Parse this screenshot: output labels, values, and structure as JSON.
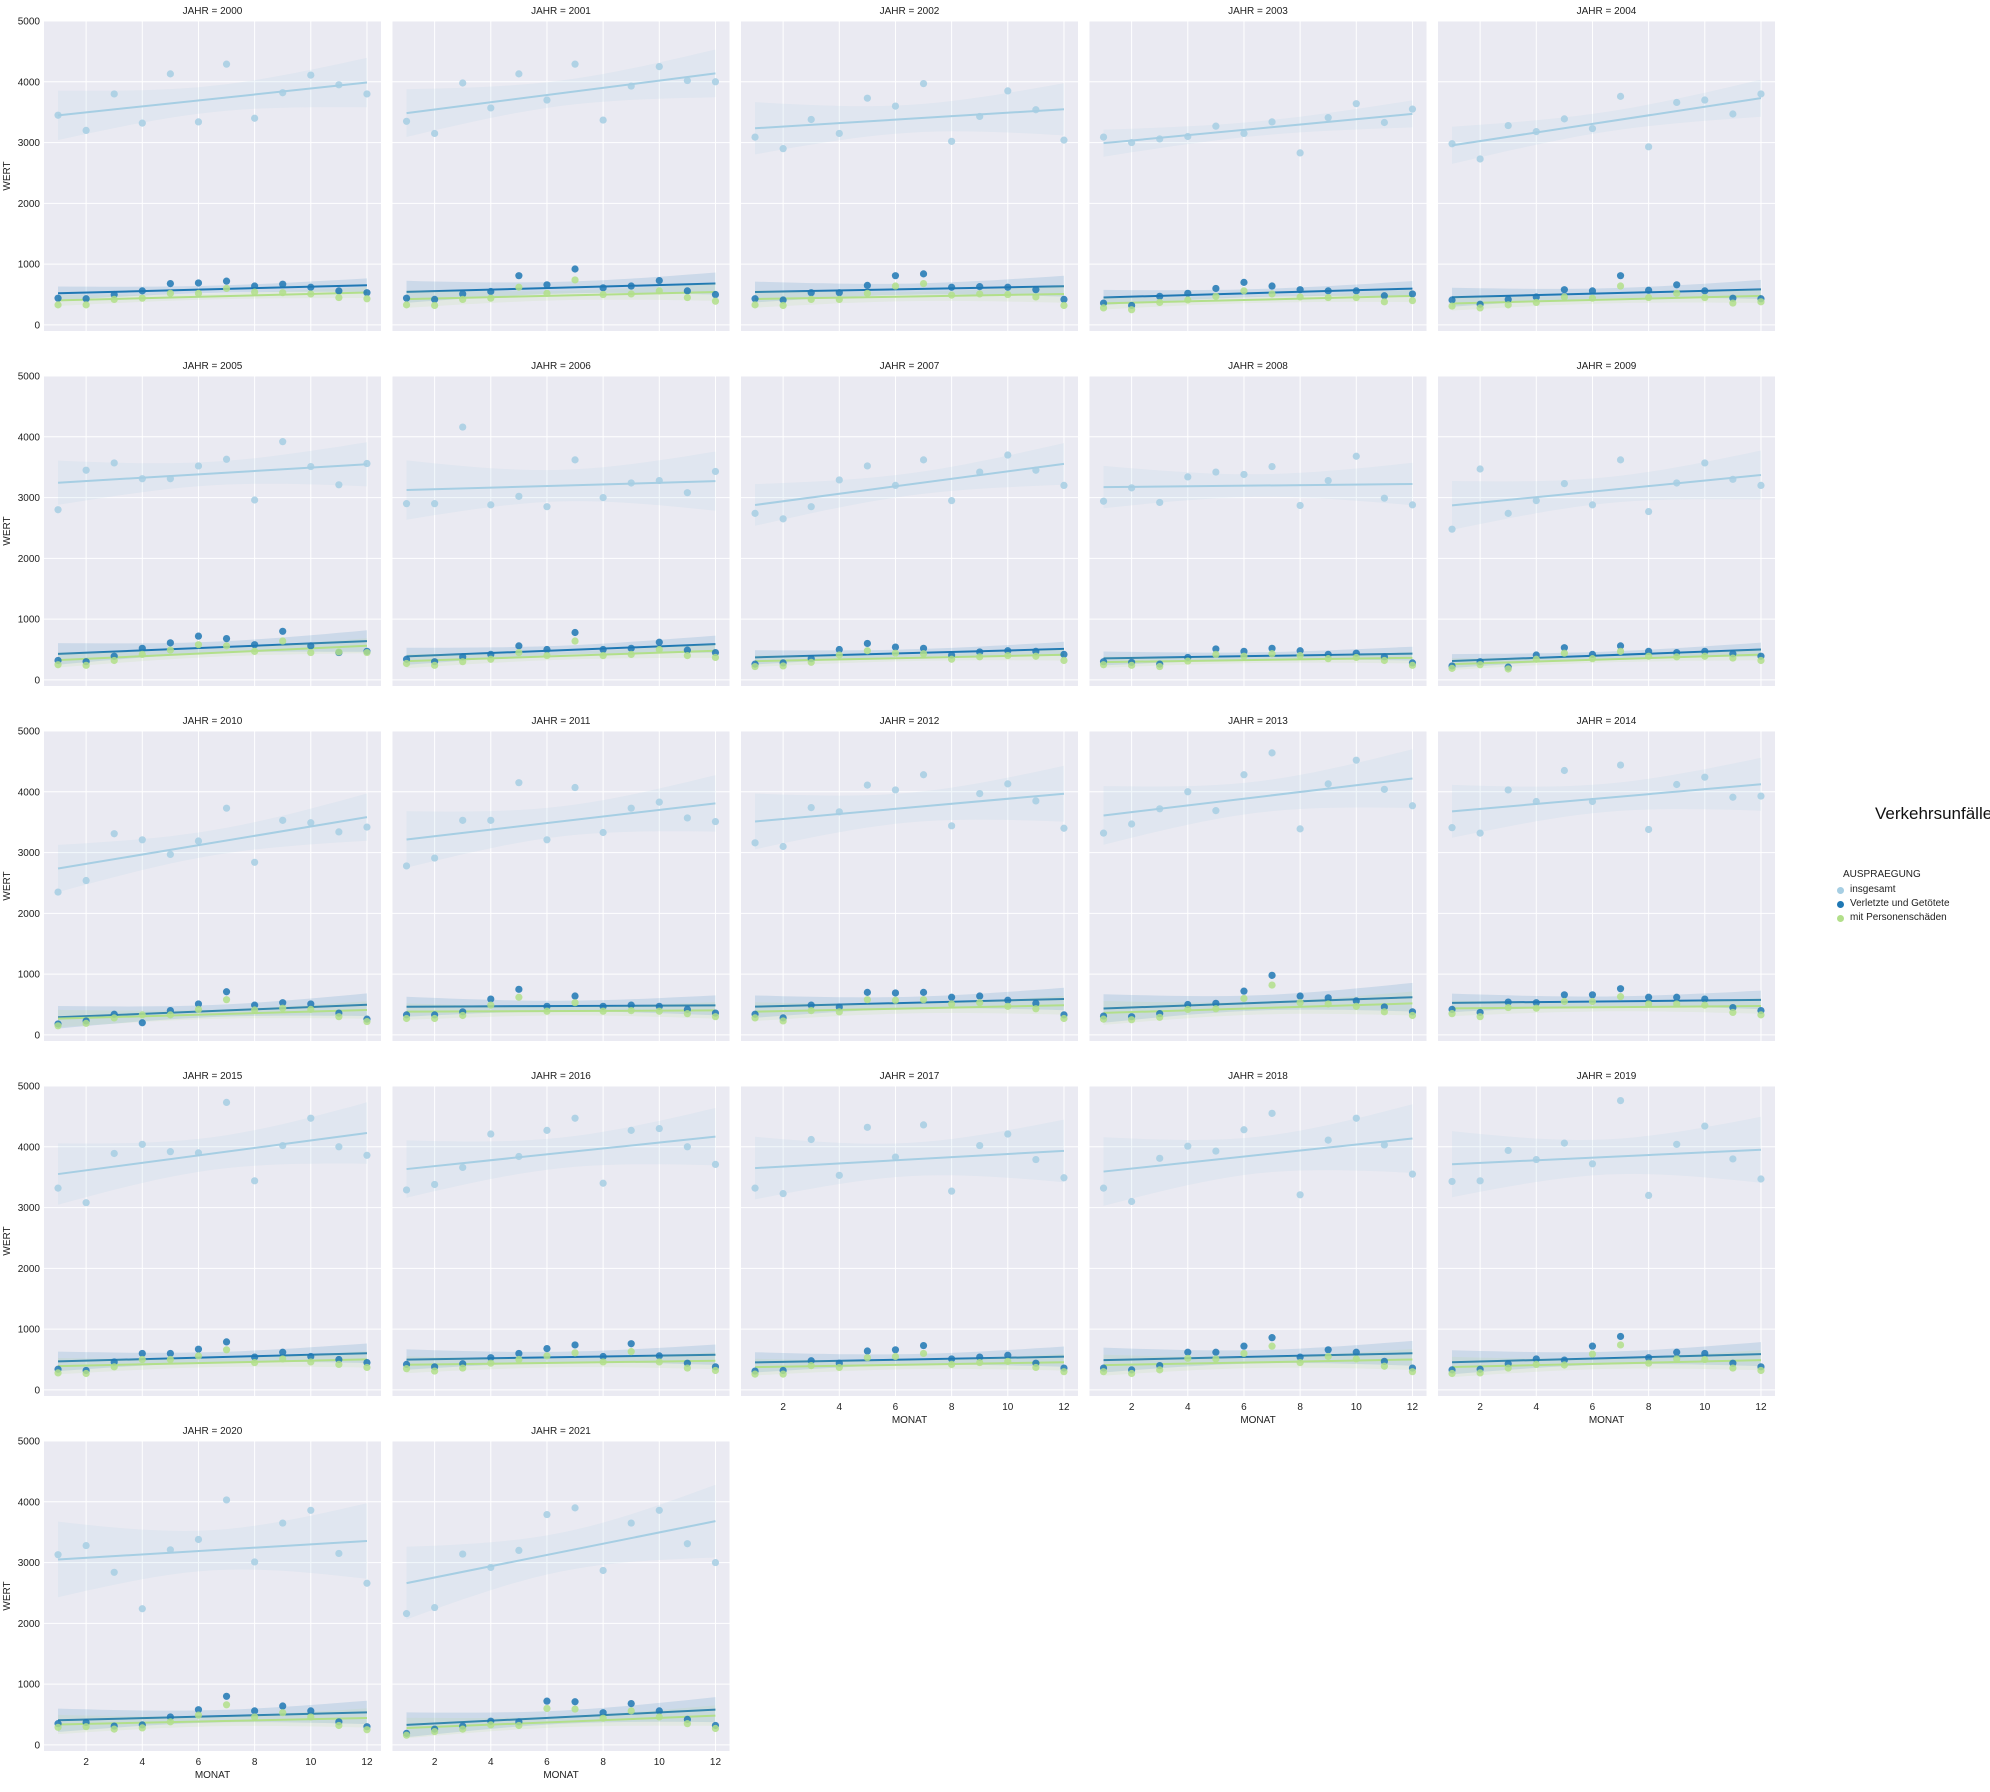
{
  "chart_data": {
    "type": "scatter",
    "facet_variable": "JAHR",
    "facet_title_prefix": "JAHR = ",
    "xlabel": "MONAT",
    "ylabel": "WERT",
    "xticks": [
      2,
      4,
      6,
      8,
      10,
      12
    ],
    "yticks": [
      0,
      1000,
      2000,
      3000,
      4000,
      5000
    ],
    "xlim": [
      0.5,
      12.5
    ],
    "ylim": [
      -100,
      5000
    ],
    "grid": true,
    "regression_lines": true,
    "legend_title": "Verkehrsunfälle",
    "legend_subtitle": "AUSPRAEGUNG",
    "legend_position": "right",
    "series_meta": [
      {
        "name": "insgesamt",
        "color": "#a6cee3"
      },
      {
        "name": "Verletzte und Getötete",
        "color": "#1f78b4"
      },
      {
        "name": "mit Personenschäden",
        "color": "#b2df8a"
      }
    ],
    "months": [
      1,
      2,
      3,
      4,
      5,
      6,
      7,
      8,
      9,
      10,
      11,
      12
    ],
    "panels": [
      {
        "year": "2000",
        "insgesamt": [
          3450,
          3200,
          3800,
          3320,
          4130,
          3340,
          4290,
          3400,
          3820,
          4110,
          3950,
          3800
        ],
        "verletzte": [
          440,
          430,
          500,
          560,
          680,
          690,
          720,
          640,
          670,
          620,
          560,
          530
        ],
        "personen": [
          330,
          330,
          420,
          440,
          520,
          520,
          600,
          540,
          530,
          510,
          450,
          430
        ]
      },
      {
        "year": "2001",
        "insgesamt": [
          3350,
          3150,
          3980,
          3570,
          4130,
          3700,
          4290,
          3370,
          3930,
          4250,
          4020,
          4000
        ],
        "verletzte": [
          440,
          420,
          510,
          550,
          810,
          660,
          920,
          610,
          640,
          730,
          560,
          500
        ],
        "personen": [
          330,
          320,
          420,
          440,
          620,
          520,
          740,
          500,
          510,
          560,
          450,
          390
        ]
      },
      {
        "year": "2002",
        "insgesamt": [
          3090,
          2900,
          3380,
          3150,
          3730,
          3600,
          3970,
          3020,
          3430,
          3850,
          3540,
          3040
        ],
        "verletzte": [
          430,
          410,
          530,
          530,
          650,
          810,
          840,
          620,
          630,
          620,
          580,
          420
        ],
        "personen": [
          330,
          320,
          420,
          420,
          520,
          640,
          680,
          490,
          510,
          500,
          460,
          320
        ]
      },
      {
        "year": "2003",
        "insgesamt": [
          3090,
          3000,
          3060,
          3100,
          3270,
          3150,
          3340,
          2830,
          3410,
          3640,
          3330,
          3550
        ],
        "verletzte": [
          360,
          320,
          470,
          520,
          600,
          700,
          640,
          580,
          560,
          560,
          480,
          510
        ],
        "personen": [
          280,
          250,
          370,
          410,
          470,
          560,
          510,
          460,
          450,
          450,
          380,
          400
        ]
      },
      {
        "year": "2004",
        "insgesamt": [
          2980,
          2730,
          3280,
          3180,
          3390,
          3230,
          3760,
          2930,
          3660,
          3700,
          3470,
          3800
        ],
        "verletzte": [
          410,
          340,
          420,
          460,
          580,
          560,
          810,
          570,
          660,
          560,
          440,
          430
        ],
        "personen": [
          310,
          280,
          330,
          370,
          460,
          440,
          640,
          450,
          520,
          450,
          360,
          380
        ]
      },
      {
        "year": "2005",
        "insgesamt": [
          2800,
          3450,
          3570,
          3310,
          3310,
          3520,
          3630,
          2960,
          3920,
          3510,
          3210,
          3560
        ],
        "verletzte": [
          320,
          300,
          390,
          520,
          610,
          720,
          680,
          580,
          800,
          560,
          450,
          470
        ],
        "personen": [
          250,
          240,
          320,
          420,
          490,
          580,
          560,
          470,
          640,
          450,
          460,
          450
        ]
      },
      {
        "year": "2006",
        "insgesamt": [
          2900,
          2900,
          4160,
          2880,
          3020,
          2850,
          3620,
          3000,
          3240,
          3280,
          3080,
          3430
        ],
        "verletzte": [
          340,
          300,
          380,
          420,
          560,
          500,
          780,
          500,
          520,
          620,
          490,
          450
        ],
        "personen": [
          270,
          240,
          300,
          340,
          450,
          400,
          640,
          400,
          420,
          500,
          400,
          370
        ]
      },
      {
        "year": "2007",
        "insgesamt": [
          2740,
          2650,
          2850,
          3290,
          3520,
          3200,
          3620,
          2950,
          3420,
          3700,
          3450,
          3200
        ],
        "verletzte": [
          260,
          280,
          350,
          500,
          600,
          540,
          520,
          410,
          460,
          480,
          470,
          420
        ],
        "personen": [
          220,
          230,
          290,
          410,
          480,
          440,
          430,
          340,
          380,
          400,
          390,
          320
        ]
      },
      {
        "year": "2008",
        "insgesamt": [
          2940,
          3160,
          2920,
          3340,
          3420,
          3380,
          3510,
          2870,
          3280,
          3680,
          2990,
          2880
        ],
        "verletzte": [
          300,
          290,
          260,
          370,
          510,
          470,
          520,
          480,
          420,
          440,
          380,
          280
        ],
        "personen": [
          250,
          240,
          220,
          310,
          420,
          390,
          430,
          400,
          350,
          370,
          320,
          240
        ]
      },
      {
        "year": "2009",
        "insgesamt": [
          2480,
          3470,
          2740,
          2950,
          3230,
          2880,
          3620,
          2770,
          3240,
          3570,
          3300,
          3200
        ],
        "verletzte": [
          230,
          300,
          210,
          410,
          530,
          420,
          560,
          470,
          450,
          470,
          430,
          390
        ],
        "personen": [
          190,
          250,
          180,
          340,
          440,
          350,
          470,
          390,
          380,
          390,
          360,
          320
        ]
      },
      {
        "year": "2010",
        "insgesamt": [
          2350,
          2540,
          3310,
          3210,
          2970,
          3190,
          3730,
          2840,
          3530,
          3490,
          3340,
          3420
        ],
        "verletzte": [
          180,
          230,
          340,
          200,
          400,
          510,
          710,
          490,
          530,
          510,
          360,
          260
        ],
        "personen": [
          150,
          190,
          280,
          330,
          330,
          420,
          580,
          410,
          440,
          420,
          300,
          220
        ]
      },
      {
        "year": "2011",
        "insgesamt": [
          2780,
          2910,
          3530,
          3530,
          4150,
          3210,
          4070,
          3330,
          3730,
          3830,
          3570,
          3510
        ],
        "verletzte": [
          330,
          330,
          380,
          590,
          750,
          470,
          640,
          470,
          490,
          470,
          420,
          360
        ],
        "personen": [
          270,
          270,
          320,
          490,
          620,
          390,
          530,
          390,
          400,
          390,
          350,
          300
        ]
      },
      {
        "year": "2012",
        "insgesamt": [
          3160,
          3100,
          3740,
          3670,
          4110,
          4030,
          4280,
          3440,
          3970,
          4130,
          3850,
          3400
        ],
        "verletzte": [
          340,
          280,
          490,
          460,
          700,
          690,
          700,
          620,
          640,
          570,
          520,
          330
        ],
        "personen": [
          280,
          230,
          400,
          380,
          580,
          570,
          580,
          510,
          530,
          470,
          430,
          270
        ]
      },
      {
        "year": "2013",
        "insgesamt": [
          3320,
          3470,
          3720,
          4000,
          3690,
          4280,
          4640,
          3390,
          4130,
          4520,
          4040,
          3770
        ],
        "verletzte": [
          310,
          300,
          350,
          500,
          520,
          720,
          980,
          640,
          610,
          560,
          460,
          380
        ],
        "personen": [
          260,
          250,
          290,
          420,
          430,
          600,
          820,
          530,
          510,
          470,
          380,
          320
        ]
      },
      {
        "year": "2014",
        "insgesamt": [
          3410,
          3320,
          4030,
          3840,
          4350,
          3840,
          4440,
          3380,
          4120,
          4240,
          3910,
          3930
        ],
        "verletzte": [
          420,
          370,
          540,
          530,
          660,
          660,
          760,
          620,
          620,
          590,
          450,
          400
        ],
        "personen": [
          350,
          300,
          450,
          440,
          550,
          550,
          630,
          510,
          510,
          490,
          370,
          330
        ]
      },
      {
        "year": "2015",
        "insgesamt": [
          3320,
          3080,
          3890,
          4040,
          3920,
          3900,
          4730,
          3440,
          4020,
          4470,
          4000,
          3860
        ],
        "verletzte": [
          340,
          320,
          460,
          600,
          600,
          670,
          790,
          540,
          620,
          550,
          500,
          450
        ],
        "personen": [
          280,
          270,
          380,
          500,
          500,
          560,
          660,
          450,
          510,
          460,
          420,
          370
        ]
      },
      {
        "year": "2016",
        "insgesamt": [
          3290,
          3380,
          3660,
          4210,
          3840,
          4270,
          4470,
          3400,
          4270,
          4300,
          4000,
          3710
        ],
        "verletzte": [
          420,
          380,
          430,
          530,
          600,
          680,
          740,
          550,
          760,
          560,
          440,
          380
        ],
        "personen": [
          350,
          310,
          360,
          440,
          500,
          560,
          610,
          460,
          630,
          460,
          360,
          320
        ]
      },
      {
        "year": "2017",
        "insgesamt": [
          3320,
          3230,
          4120,
          3530,
          4320,
          3830,
          4360,
          3270,
          4020,
          4210,
          3790,
          3490
        ],
        "verletzte": [
          310,
          320,
          480,
          440,
          640,
          660,
          730,
          510,
          540,
          570,
          440,
          360
        ],
        "personen": [
          260,
          260,
          400,
          370,
          530,
          550,
          600,
          420,
          450,
          470,
          370,
          300
        ]
      },
      {
        "year": "2018",
        "insgesamt": [
          3320,
          3100,
          3810,
          4010,
          3930,
          4280,
          4550,
          3210,
          4110,
          4470,
          4030,
          3550
        ],
        "verletzte": [
          360,
          330,
          400,
          620,
          620,
          720,
          860,
          540,
          660,
          620,
          470,
          360
        ],
        "personen": [
          300,
          270,
          330,
          520,
          510,
          600,
          720,
          450,
          550,
          510,
          390,
          300
        ]
      },
      {
        "year": "2019",
        "insgesamt": [
          3430,
          3440,
          3940,
          3790,
          4060,
          3720,
          4760,
          3200,
          4040,
          4340,
          3800,
          3470
        ],
        "verletzte": [
          330,
          340,
          430,
          510,
          490,
          720,
          880,
          530,
          620,
          600,
          440,
          380
        ],
        "personen": [
          270,
          280,
          360,
          420,
          410,
          590,
          740,
          440,
          510,
          500,
          360,
          320
        ]
      },
      {
        "year": "2020",
        "insgesamt": [
          3130,
          3280,
          2840,
          2240,
          3210,
          3380,
          4030,
          3010,
          3650,
          3860,
          3150,
          2660
        ],
        "verletzte": [
          350,
          370,
          310,
          330,
          460,
          580,
          800,
          560,
          640,
          560,
          380,
          300
        ],
        "personen": [
          290,
          300,
          260,
          280,
          380,
          490,
          660,
          460,
          530,
          460,
          320,
          250
        ]
      },
      {
        "year": "2021",
        "insgesamt": [
          2160,
          2260,
          3140,
          2920,
          3200,
          3790,
          3900,
          2870,
          3650,
          3860,
          3310,
          3000
        ],
        "verletzte": [
          190,
          260,
          310,
          390,
          380,
          720,
          710,
          530,
          680,
          560,
          420,
          320
        ],
        "personen": [
          160,
          220,
          260,
          330,
          320,
          600,
          590,
          440,
          560,
          460,
          350,
          270
        ]
      }
    ]
  }
}
